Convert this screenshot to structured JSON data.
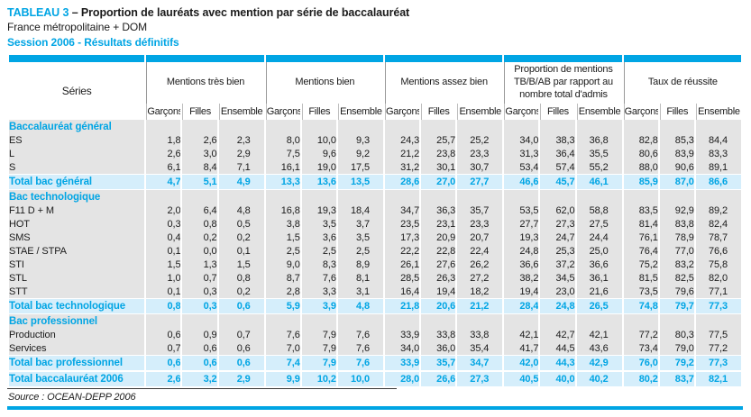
{
  "accent_color": "#00a5e4",
  "highlight_row_color": "#d5eefb",
  "body_cell_color": "#e4e4e4",
  "title": {
    "tag": "TABLEAU 3",
    "rest": "– Proportion de lauréats avec mention par série de baccalauréat",
    "subtitle": "France métropolitaine + DOM",
    "session": "Session 2006 - Résultats définitifs"
  },
  "table": {
    "header": {
      "series_label": "Séries",
      "groups": [
        "Mentions très bien",
        "Mentions bien",
        "Mentions assez bien",
        "Proportion de mentions TB/B/AB par rapport au nombre total d'admis",
        "Taux de réussite"
      ],
      "subcolumns": [
        "Garçons",
        "Filles",
        "Ensemble"
      ]
    },
    "rows": [
      {
        "type": "section",
        "label": "Baccalauréat général"
      },
      {
        "type": "data",
        "label": "ES",
        "values": [
          "1,8",
          "2,6",
          "2,3",
          "8,0",
          "10,0",
          "9,3",
          "24,3",
          "25,7",
          "25,2",
          "34,0",
          "38,3",
          "36,8",
          "82,8",
          "85,3",
          "84,4"
        ]
      },
      {
        "type": "data",
        "label": "L",
        "values": [
          "2,6",
          "3,0",
          "2,9",
          "7,5",
          "9,6",
          "9,2",
          "21,2",
          "23,8",
          "23,3",
          "31,3",
          "36,4",
          "35,5",
          "80,6",
          "83,9",
          "83,3"
        ]
      },
      {
        "type": "data",
        "label": "S",
        "values": [
          "6,1",
          "8,4",
          "7,1",
          "16,1",
          "19,0",
          "17,5",
          "31,2",
          "30,1",
          "30,7",
          "53,4",
          "57,4",
          "55,2",
          "88,0",
          "90,6",
          "89,1"
        ]
      },
      {
        "type": "total",
        "label": "Total bac général",
        "values": [
          "4,7",
          "5,1",
          "4,9",
          "13,3",
          "13,6",
          "13,5",
          "28,6",
          "27,0",
          "27,7",
          "46,6",
          "45,7",
          "46,1",
          "85,9",
          "87,0",
          "86,6"
        ]
      },
      {
        "type": "section",
        "label": "Bac technologique"
      },
      {
        "type": "data",
        "label": "F11 D + M",
        "values": [
          "2,0",
          "6,4",
          "4,8",
          "16,8",
          "19,3",
          "18,4",
          "34,7",
          "36,3",
          "35,7",
          "53,5",
          "62,0",
          "58,8",
          "83,5",
          "92,9",
          "89,2"
        ]
      },
      {
        "type": "data",
        "label": "HOT",
        "values": [
          "0,3",
          "0,8",
          "0,5",
          "3,8",
          "3,5",
          "3,7",
          "23,5",
          "23,1",
          "23,3",
          "27,7",
          "27,3",
          "27,5",
          "81,4",
          "83,8",
          "82,4"
        ]
      },
      {
        "type": "data",
        "label": "SMS",
        "values": [
          "0,4",
          "0,2",
          "0,2",
          "1,5",
          "3,6",
          "3,5",
          "17,3",
          "20,9",
          "20,7",
          "19,3",
          "24,7",
          "24,4",
          "76,1",
          "78,9",
          "78,7"
        ]
      },
      {
        "type": "data",
        "label": "STAE / STPA",
        "values": [
          "0,1",
          "0,0",
          "0,1",
          "2,5",
          "2,5",
          "2,5",
          "22,2",
          "22,8",
          "22,4",
          "24,8",
          "25,3",
          "25,0",
          "76,4",
          "77,0",
          "76,6"
        ]
      },
      {
        "type": "data",
        "label": "STI",
        "values": [
          "1,5",
          "1,3",
          "1,5",
          "9,0",
          "8,3",
          "8,9",
          "26,1",
          "27,6",
          "26,2",
          "36,6",
          "37,2",
          "36,6",
          "75,2",
          "83,2",
          "75,8"
        ]
      },
      {
        "type": "data",
        "label": "STL",
        "values": [
          "1,0",
          "0,7",
          "0,8",
          "8,7",
          "7,6",
          "8,1",
          "28,5",
          "26,3",
          "27,2",
          "38,2",
          "34,5",
          "36,1",
          "81,5",
          "82,5",
          "82,0"
        ]
      },
      {
        "type": "data",
        "label": "STT",
        "values": [
          "0,1",
          "0,3",
          "0,2",
          "2,8",
          "3,3",
          "3,1",
          "16,4",
          "19,4",
          "18,2",
          "19,4",
          "23,0",
          "21,6",
          "73,5",
          "79,6",
          "77,1"
        ]
      },
      {
        "type": "total",
        "label": "Total bac technologique",
        "values": [
          "0,8",
          "0,3",
          "0,6",
          "5,9",
          "3,9",
          "4,8",
          "21,8",
          "20,6",
          "21,2",
          "28,4",
          "24,8",
          "26,5",
          "74,8",
          "79,7",
          "77,3"
        ]
      },
      {
        "type": "section",
        "label": "Bac professionnel"
      },
      {
        "type": "data",
        "label": "Production",
        "values": [
          "0,6",
          "0,9",
          "0,7",
          "7,6",
          "7,9",
          "7,6",
          "33,9",
          "33,8",
          "33,8",
          "42,1",
          "42,7",
          "42,1",
          "77,2",
          "80,3",
          "77,5"
        ]
      },
      {
        "type": "data",
        "label": "Services",
        "values": [
          "0,7",
          "0,6",
          "0,6",
          "7,0",
          "7,9",
          "7,6",
          "34,0",
          "36,0",
          "35,4",
          "41,7",
          "44,5",
          "43,6",
          "73,4",
          "79,0",
          "77,2"
        ]
      },
      {
        "type": "total",
        "label": "Total bac professionnel",
        "values": [
          "0,6",
          "0,6",
          "0,6",
          "7,4",
          "7,9",
          "7,6",
          "33,9",
          "35,7",
          "34,7",
          "42,0",
          "44,3",
          "42,9",
          "76,0",
          "79,2",
          "77,3"
        ]
      },
      {
        "type": "total",
        "label": "Total baccalauréat 2006",
        "values": [
          "2,6",
          "3,2",
          "2,9",
          "9,9",
          "10,2",
          "10,0",
          "28,0",
          "26,6",
          "27,3",
          "40,5",
          "40,0",
          "40,2",
          "80,2",
          "83,7",
          "82,1"
        ]
      }
    ]
  },
  "source": "Source : OCEAN-DEPP 2006"
}
